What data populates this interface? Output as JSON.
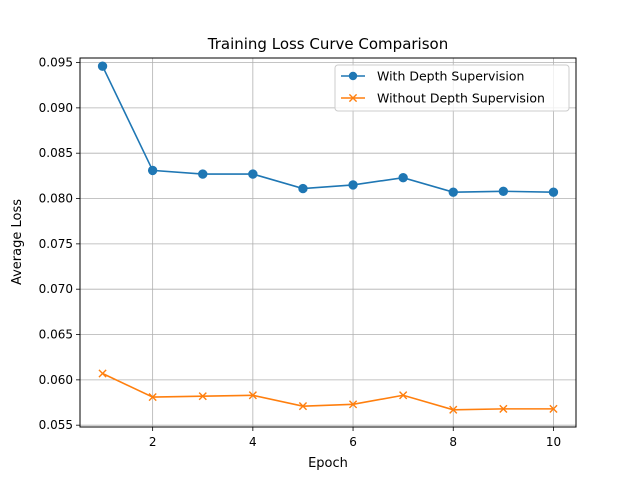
{
  "chart_data": {
    "type": "line",
    "title": "Training Loss Curve Comparison",
    "xlabel": "Epoch",
    "ylabel": "Average Loss",
    "xlim": [
      0.55,
      10.45
    ],
    "ylim": [
      0.0548,
      0.0955
    ],
    "x_ticks": [
      2,
      4,
      6,
      8,
      10
    ],
    "y_ticks": [
      0.055,
      0.06,
      0.065,
      0.07,
      0.075,
      0.08,
      0.085,
      0.09,
      0.095
    ],
    "y_tick_labels": [
      "0.055",
      "0.060",
      "0.065",
      "0.070",
      "0.075",
      "0.080",
      "0.085",
      "0.090",
      "0.095"
    ],
    "grid": true,
    "legend_position": "top-right",
    "x": [
      1,
      2,
      3,
      4,
      5,
      6,
      7,
      8,
      9,
      10
    ],
    "series": [
      {
        "name": "With Depth Supervision",
        "color": "#1f77b4",
        "marker": "circle",
        "values": [
          0.0946,
          0.0831,
          0.0827,
          0.0827,
          0.0811,
          0.0815,
          0.0823,
          0.0807,
          0.0808,
          0.0807
        ]
      },
      {
        "name": "Without Depth Supervision",
        "color": "#ff7f0e",
        "marker": "x",
        "values": [
          0.0607,
          0.0581,
          0.0582,
          0.0583,
          0.0571,
          0.0573,
          0.0583,
          0.0567,
          0.0568,
          0.0568
        ]
      }
    ]
  }
}
